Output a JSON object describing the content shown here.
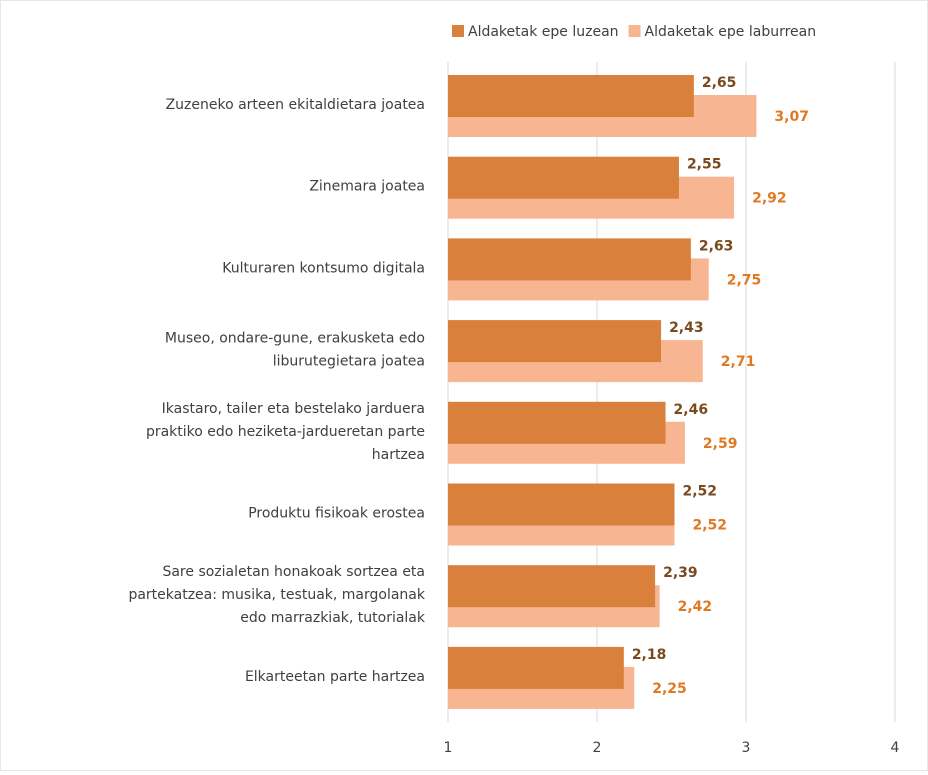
{
  "chart_data": {
    "type": "bar",
    "categories": [
      [
        "Zuzeneko arteen ekitaldietara joatea"
      ],
      [
        "Zinemara joatea"
      ],
      [
        "Kulturaren kontsumo digitala"
      ],
      [
        "Museo, ondare-gune, erakusketa edo",
        "liburutegietara joatea"
      ],
      [
        "Ikastaro, tailer eta bestelako jarduera",
        "praktiko edo heziketa-jardueretan parte",
        "hartzea"
      ],
      [
        "Produktu fisikoak erostea"
      ],
      [
        "Sare sozialetan honakoak sortzea eta",
        "partekatzea: musika, testuak, margolanak",
        "edo marrazkiak, tutorialak"
      ],
      [
        "Elkarteetan parte hartzea"
      ]
    ],
    "series": [
      {
        "name": "Aldaketak epe luzean",
        "color": "#d9803d",
        "label_color": "#7a4a1e",
        "values": [
          2.65,
          2.55,
          2.63,
          2.43,
          2.46,
          2.52,
          2.39,
          2.18
        ],
        "value_labels": [
          "2,65",
          "2,55",
          "2,63",
          "2,43",
          "2,46",
          "2,52",
          "2,39",
          "2,18"
        ]
      },
      {
        "name": "Aldaketak epe laburrean",
        "color": "#f8b591",
        "label_color": "#e07a22",
        "values": [
          3.07,
          2.92,
          2.75,
          2.71,
          2.59,
          2.52,
          2.42,
          2.25
        ],
        "value_labels": [
          "3,07",
          "2,92",
          "2,75",
          "2,71",
          "2,59",
          "2,52",
          "2,42",
          "2,25"
        ]
      }
    ],
    "xlim": [
      1,
      4
    ],
    "xticks": [
      1,
      2,
      3,
      4
    ],
    "grid": true,
    "legend": "top-right"
  }
}
